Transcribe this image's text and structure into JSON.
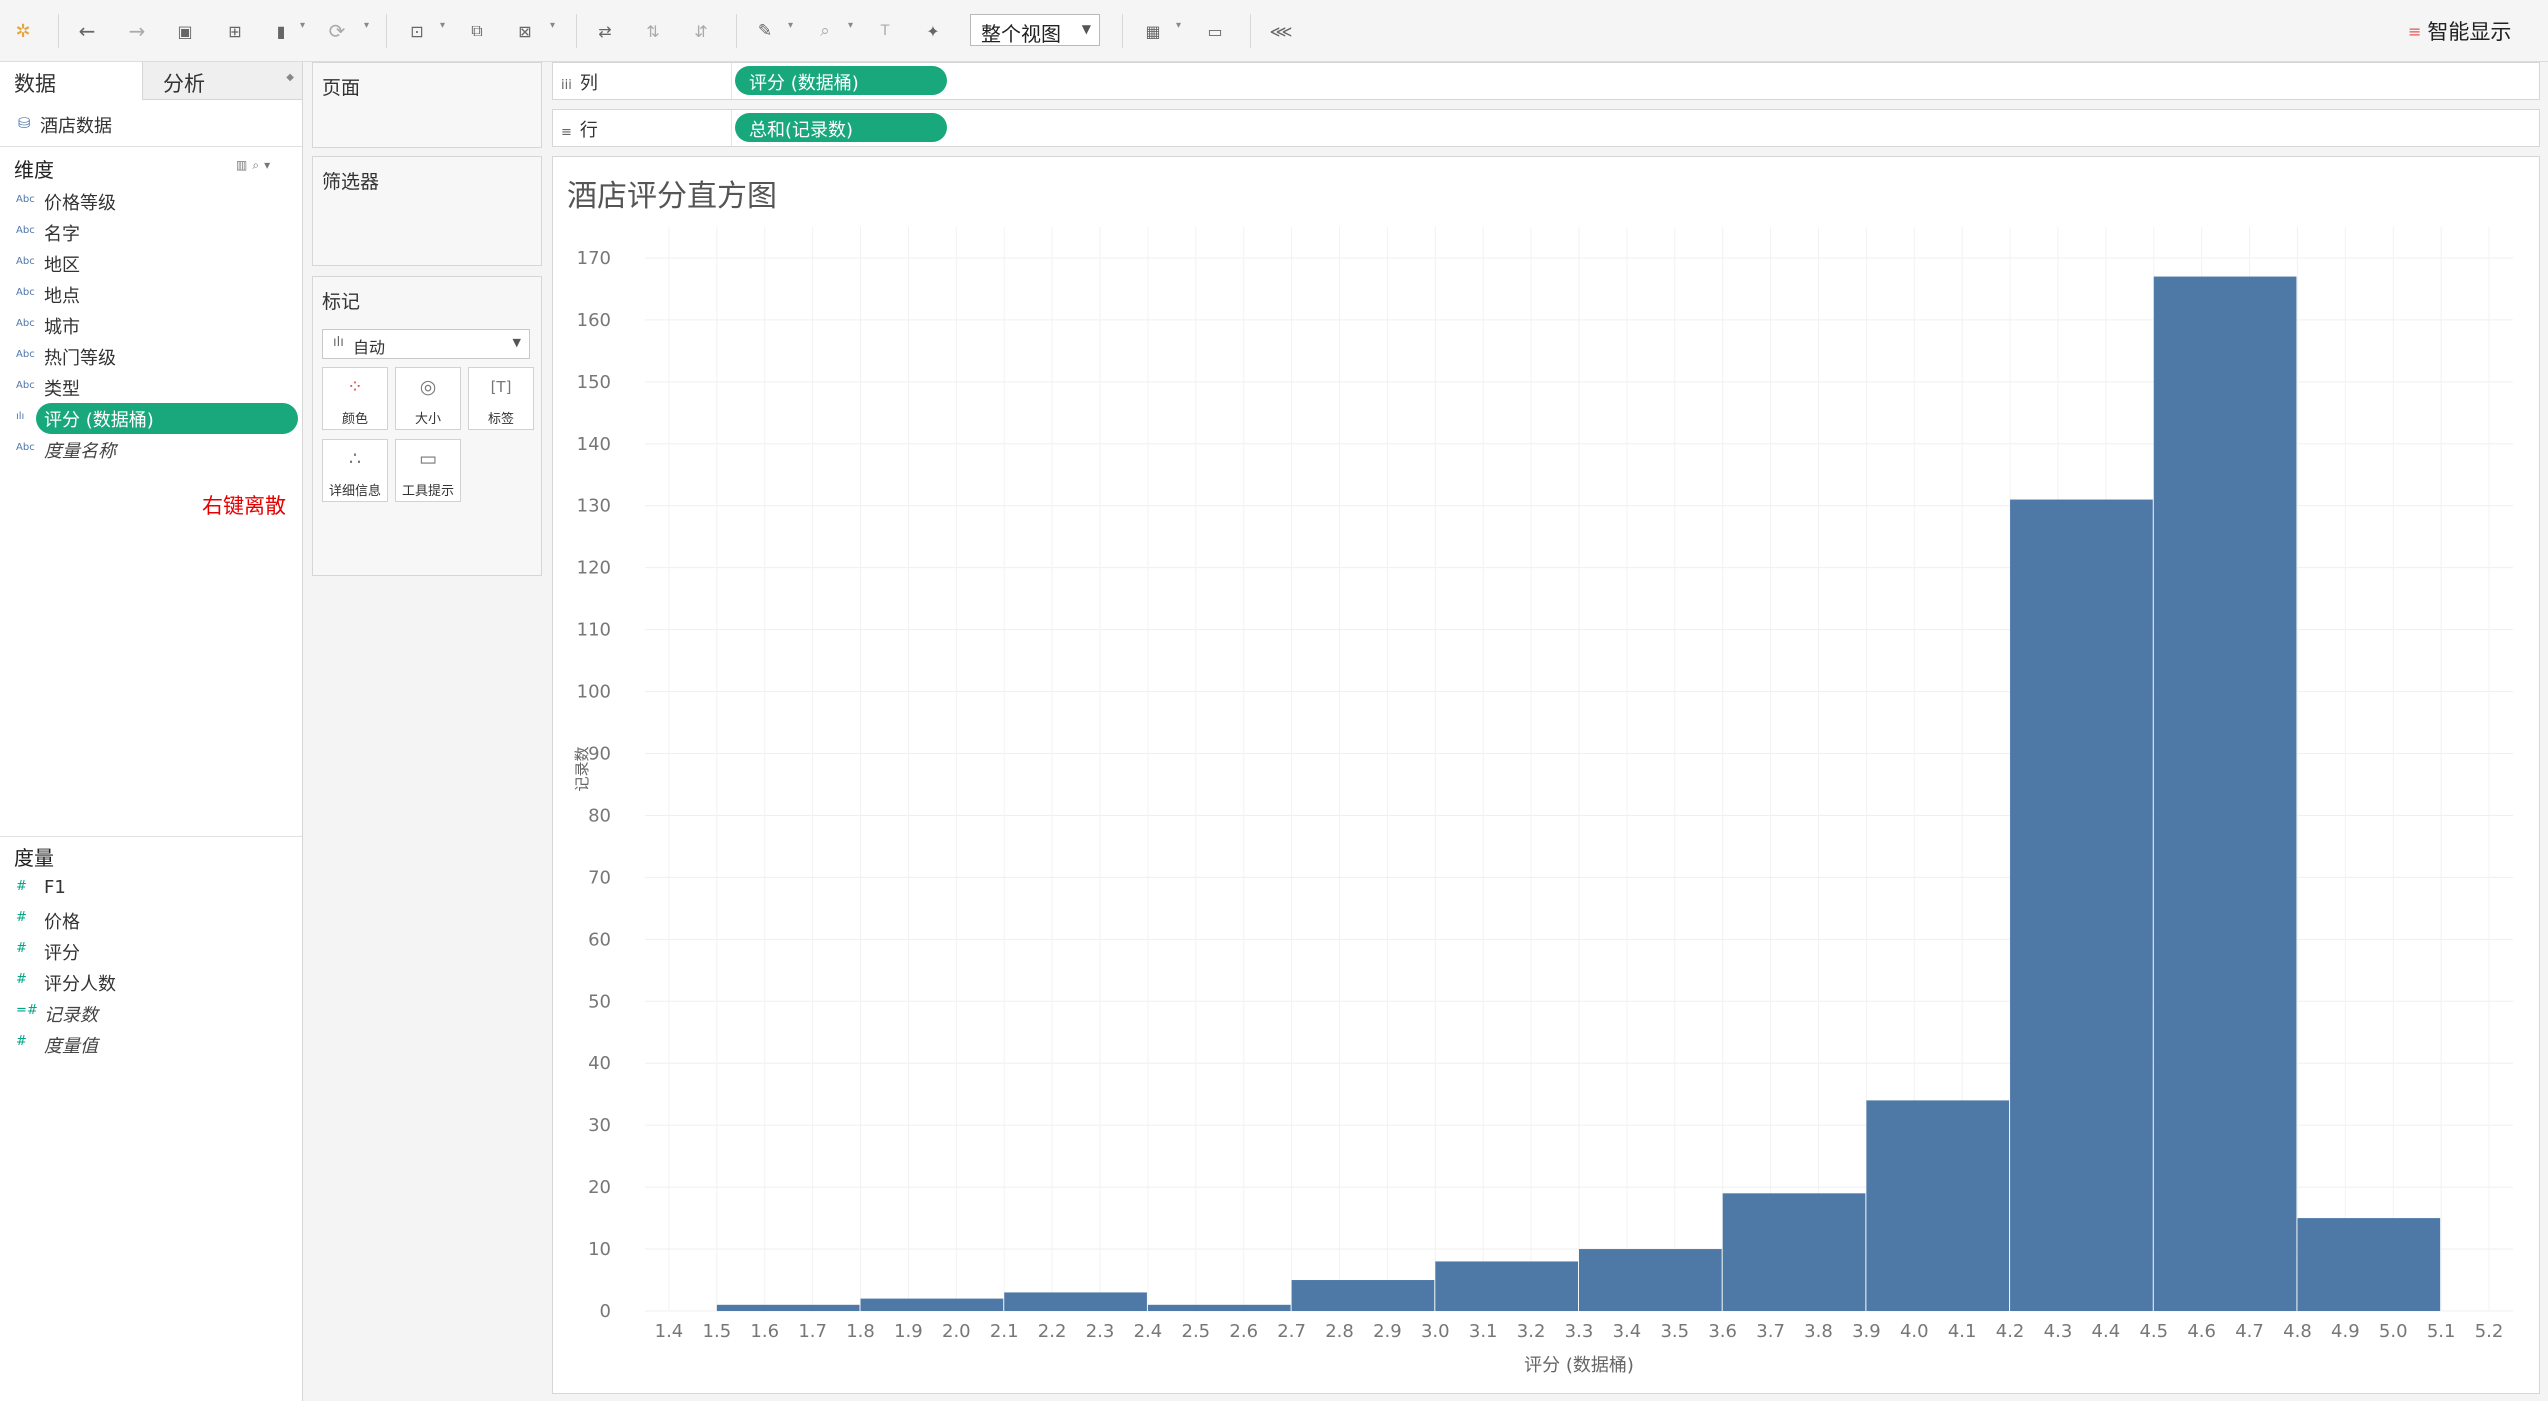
{
  "toolbar": {
    "view_select": "整个视图",
    "smart_show": "智能显示",
    "icons": [
      "tableau-logo-icon",
      "undo-icon",
      "redo-icon",
      "save-icon",
      "new-datasource-icon",
      "pause-icon",
      "refresh-icon",
      "new-sheet-icon",
      "duplicate-icon",
      "clear-icon",
      "swap-icon",
      "sort-asc-icon",
      "sort-desc-icon",
      "highlight-icon",
      "group-icon",
      "label-icon",
      "pin-icon",
      "fit-icon",
      "presentation-icon",
      "share-icon"
    ]
  },
  "data_pane": {
    "tab_data": "数据",
    "tab_analysis": "分析",
    "datasource": "酒店数据",
    "dimensions_title": "维度",
    "dimensions": [
      {
        "type": "Abc",
        "name": "价格等级"
      },
      {
        "type": "Abc",
        "name": "名字"
      },
      {
        "type": "Abc",
        "name": "地区"
      },
      {
        "type": "Abc",
        "name": "地点"
      },
      {
        "type": "Abc",
        "name": "城市"
      },
      {
        "type": "Abc",
        "name": "热门等级"
      },
      {
        "type": "Abc",
        "name": "类型"
      },
      {
        "type": "ılı",
        "name": "评分 (数据桶)"
      },
      {
        "type": "Abc",
        "name": "度量名称"
      }
    ],
    "annotation": "右键离散",
    "measures_title": "度量",
    "measures": [
      {
        "type": "#",
        "name": "F1"
      },
      {
        "type": "#",
        "name": "价格"
      },
      {
        "type": "#",
        "name": "评分"
      },
      {
        "type": "#",
        "name": "评分人数"
      },
      {
        "type": "=#",
        "name": "记录数"
      },
      {
        "type": "#",
        "name": "度量值"
      }
    ]
  },
  "cards": {
    "pages": "页面",
    "filters": "筛选器",
    "marks": "标记",
    "mark_type": "自动",
    "mark_buttons": [
      "颜色",
      "大小",
      "标签",
      "详细信息",
      "工具提示"
    ]
  },
  "shelves": {
    "columns_label": "列",
    "columns_pill": "评分 (数据桶)",
    "rows_label": "行",
    "rows_pill": "总和(记录数)"
  },
  "view": {
    "title": "酒店评分直方图"
  },
  "chart_data": {
    "type": "bar",
    "title": "酒店评分直方图",
    "xlabel": "评分 (数据桶)",
    "ylabel": "记录数",
    "x_ticks": [
      "1.4",
      "1.5",
      "1.6",
      "1.7",
      "1.8",
      "1.9",
      "2.0",
      "2.1",
      "2.2",
      "2.3",
      "2.4",
      "2.5",
      "2.6",
      "2.7",
      "2.8",
      "2.9",
      "3.0",
      "3.1",
      "3.2",
      "3.3",
      "3.4",
      "3.5",
      "3.6",
      "3.7",
      "3.8",
      "3.9",
      "4.0",
      "4.1",
      "4.2",
      "4.3",
      "4.4",
      "4.5",
      "4.6",
      "4.7",
      "4.8",
      "4.9",
      "5.0",
      "5.1",
      "5.2"
    ],
    "xlim": [
      1.35,
      5.25
    ],
    "ylim": [
      0,
      175
    ],
    "y_ticks": [
      0,
      10,
      20,
      30,
      40,
      50,
      60,
      70,
      80,
      90,
      100,
      110,
      120,
      130,
      140,
      150,
      160,
      170
    ],
    "bin_width": 0.3,
    "bins": [
      {
        "start": 1.5,
        "value": 1
      },
      {
        "start": 1.8,
        "value": 2
      },
      {
        "start": 2.1,
        "value": 3
      },
      {
        "start": 2.4,
        "value": 1
      },
      {
        "start": 2.7,
        "value": 5
      },
      {
        "start": 3.0,
        "value": 8
      },
      {
        "start": 3.3,
        "value": 10
      },
      {
        "start": 3.6,
        "value": 19
      },
      {
        "start": 3.9,
        "value": 34
      },
      {
        "start": 4.2,
        "value": 131
      },
      {
        "start": 4.5,
        "value": 167
      },
      {
        "start": 4.8,
        "value": 15
      }
    ],
    "bar_color": "#4e79a7",
    "grid": true
  }
}
